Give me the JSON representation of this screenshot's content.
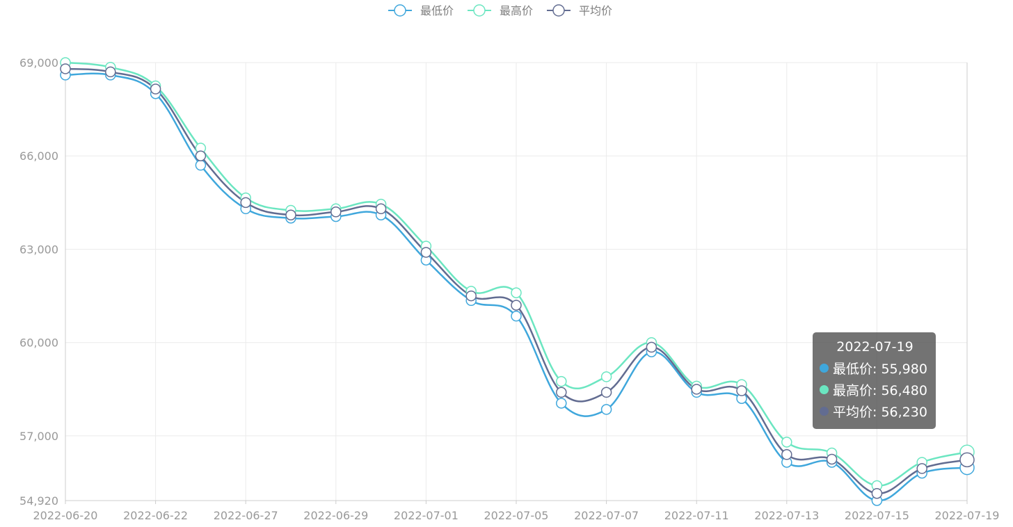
{
  "chart_data": {
    "type": "line",
    "smooth": true,
    "legend_position": "top-center",
    "grid": true,
    "x": [
      "2022-06-20",
      "2022-06-21",
      "2022-06-22",
      "2022-06-24",
      "2022-06-27",
      "2022-06-28",
      "2022-06-29",
      "2022-06-30",
      "2022-07-01",
      "2022-07-04",
      "2022-07-05",
      "2022-07-06",
      "2022-07-07",
      "2022-07-08",
      "2022-07-11",
      "2022-07-12",
      "2022-07-13",
      "2022-07-14",
      "2022-07-15",
      "2022-07-18",
      "2022-07-19"
    ],
    "x_tick_labels": [
      "2022-06-20",
      "2022-06-22",
      "2022-06-27",
      "2022-06-29",
      "2022-07-01",
      "2022-07-05",
      "2022-07-07",
      "2022-07-11",
      "2022-07-13",
      "2022-07-15",
      "2022-07-19"
    ],
    "y_ticks": [
      "54,920",
      "57,000",
      "60,000",
      "63,000",
      "66,000",
      "69,000"
    ],
    "ylim": [
      54920,
      69000
    ],
    "series": [
      {
        "name": "最低价",
        "color": "#3fa7dc",
        "values": [
          68600,
          68600,
          68000,
          65700,
          64300,
          64000,
          64050,
          64100,
          62650,
          61350,
          60850,
          58050,
          57850,
          59700,
          58400,
          58200,
          56150,
          56150,
          54920,
          55800,
          55980
        ]
      },
      {
        "name": "最高价",
        "color": "#6be6c1",
        "values": [
          69000,
          68850,
          68250,
          66250,
          64650,
          64250,
          64300,
          64450,
          63100,
          61650,
          61600,
          58750,
          58900,
          60000,
          58600,
          58650,
          56800,
          56450,
          55400,
          56150,
          56480
        ]
      },
      {
        "name": "平均价",
        "color": "#626c91",
        "values": [
          68800,
          68700,
          68150,
          66000,
          64500,
          64100,
          64200,
          64300,
          62900,
          61500,
          61200,
          58400,
          58400,
          59850,
          58500,
          58450,
          56400,
          56250,
          55150,
          55950,
          56230
        ]
      }
    ],
    "tooltip": {
      "title": "2022-07-19",
      "rows": [
        {
          "label": "最低价: 55,980",
          "color": "#3fa7dc"
        },
        {
          "label": "最高价: 56,480",
          "color": "#6be6c1"
        },
        {
          "label": "平均价: 56,230",
          "color": "#626c91"
        }
      ]
    }
  }
}
